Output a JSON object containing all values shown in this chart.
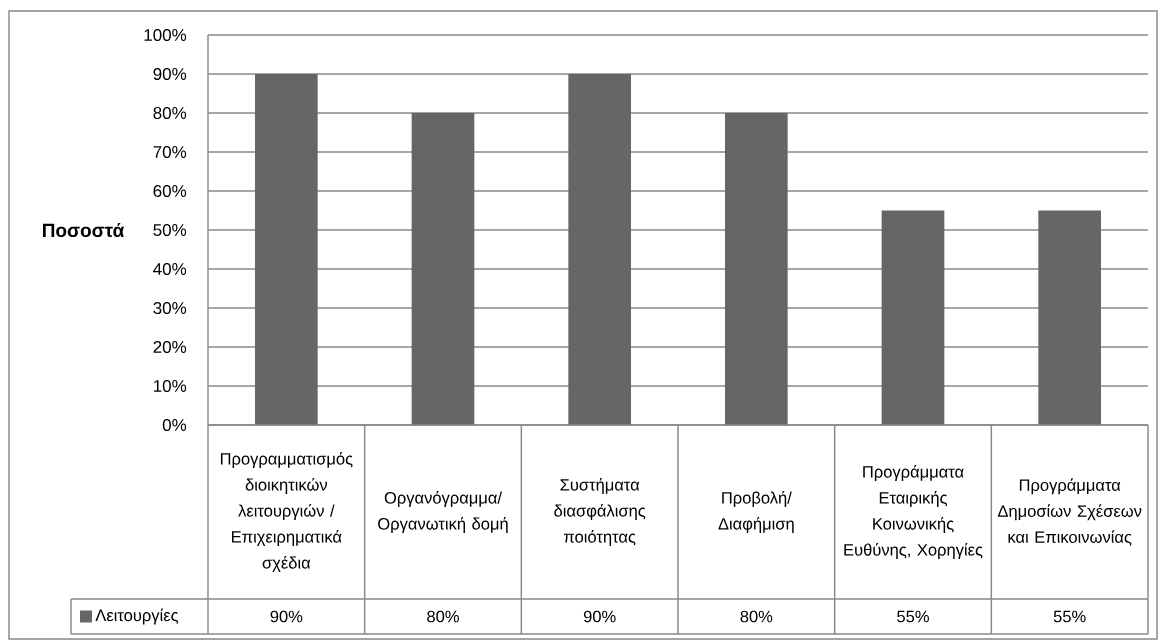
{
  "chart_data": {
    "type": "bar",
    "ylabel": "Ποσοστά",
    "categories": [
      "Προγραμματισμός διοικητικών λειτουργιών /Επιχειρηματικά σχέδια",
      "Οργανόγραμμα/Οργανωτική δομή",
      "Συστήματα διασφάλισης ποιότητας",
      "Προβολή/Διαφήμιση",
      "Προγράμματα Εταιρικής Κοινωνικής Ευθύνης, Χορηγίες",
      "Προγράμματα Δημοσίων Σχέσεων και Επικοινωνίας"
    ],
    "series": [
      {
        "name": "Λειτουργίες",
        "color": "#666666",
        "values": [
          90,
          80,
          90,
          80,
          55,
          55
        ],
        "value_labels": [
          "90%",
          "80%",
          "90%",
          "80%",
          "55%",
          "55%"
        ]
      }
    ],
    "ylim": [
      0,
      100
    ],
    "yticks": [
      {
        "value": 0,
        "label": "0%"
      },
      {
        "value": 10,
        "label": "10%"
      },
      {
        "value": 20,
        "label": "20%"
      },
      {
        "value": 30,
        "label": "30%"
      },
      {
        "value": 40,
        "label": "40%"
      },
      {
        "value": 50,
        "label": "50%"
      },
      {
        "value": 60,
        "label": "60%"
      },
      {
        "value": 70,
        "label": "70%"
      },
      {
        "value": 80,
        "label": "80%"
      },
      {
        "value": 90,
        "label": "90%"
      },
      {
        "value": 100,
        "label": "100%"
      }
    ],
    "grid": "y",
    "legend": "bottom left"
  }
}
